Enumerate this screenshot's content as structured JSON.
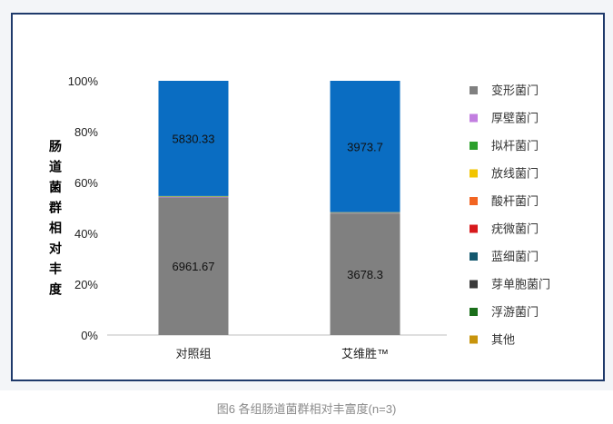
{
  "caption": "图6 各组肠道菌群相对丰富度(n=3)",
  "chart_data": {
    "type": "bar",
    "stacked": true,
    "normalized": true,
    "ylabel": "肠道菌群相对丰度",
    "ylim": [
      0,
      100
    ],
    "yticks": [
      "0%",
      "20%",
      "40%",
      "60%",
      "80%",
      "100%"
    ],
    "categories": [
      "对照组",
      "艾维胜™"
    ],
    "series": [
      {
        "name": "变形菌门",
        "color": "#808080",
        "values": [
          6961.67,
          3678.3
        ],
        "labels": [
          "6961.67",
          "3678.3"
        ]
      },
      {
        "name": "厚壁菌门",
        "color": "#c27ee0",
        "values": [
          30,
          15
        ]
      },
      {
        "name": "拟杆菌门",
        "color": "#2ca02c",
        "values": [
          25,
          12
        ]
      },
      {
        "name": "放线菌门",
        "color": "#f2c500",
        "values": [
          8,
          6
        ]
      },
      {
        "name": "酸杆菌门",
        "color": "#f26522",
        "values": [
          3,
          2
        ]
      },
      {
        "name": "疣微菌门",
        "color": "#d7191c",
        "values": [
          2,
          1
        ]
      },
      {
        "name": "蓝细菌门",
        "color": "#14586e",
        "values": [
          1,
          1
        ]
      },
      {
        "name": "芽单胞菌门",
        "color": "#3a3a3a",
        "values": [
          1,
          1
        ]
      },
      {
        "name": "浮游菌门",
        "color": "#1a6e1a",
        "values": [
          1,
          1
        ]
      },
      {
        "name": "其他",
        "color": "#c8940c",
        "values": [
          1,
          1
        ]
      },
      {
        "name": "",
        "color": "#0a6dc2",
        "values": [
          5830.33,
          3973.7
        ],
        "labels": [
          "5830.33",
          "3973.7"
        ]
      }
    ],
    "legend": "right",
    "grid": false
  }
}
